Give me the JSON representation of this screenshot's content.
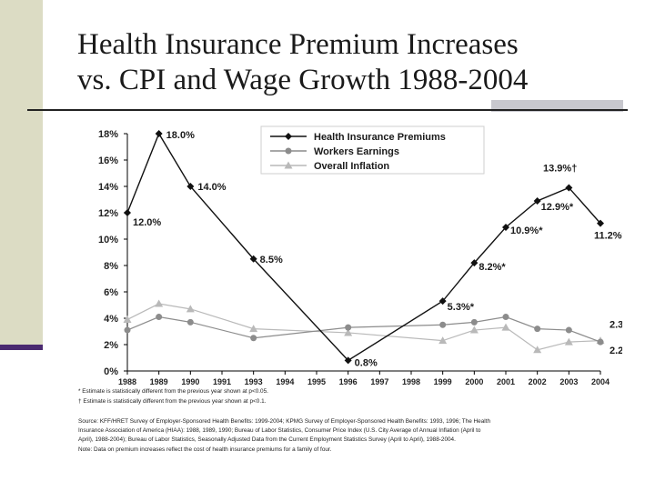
{
  "slide": {
    "title_line1": "Health Insurance Premium Increases",
    "title_line2": "vs. CPI and Wage Growth 1988-2004"
  },
  "colors": {
    "premiums": "#111111",
    "earnings": "#8c8c8c",
    "inflation": "#b9b9b9",
    "left_bar": "#dcdcc4",
    "left_bar_edge": "#4a2a70"
  },
  "chart_data": {
    "type": "line",
    "x": [
      "1988",
      "1989",
      "1990",
      "1991",
      "1993",
      "1994",
      "1995",
      "1996",
      "1997",
      "1998",
      "1999",
      "2000",
      "2001",
      "2002",
      "2003",
      "2004"
    ],
    "ylim": [
      0,
      18
    ],
    "yticks": [
      "0%",
      "2%",
      "4%",
      "6%",
      "8%",
      "10%",
      "12%",
      "14%",
      "16%",
      "18%"
    ],
    "legend_position": "top-right",
    "grid": false,
    "series": [
      {
        "name": "Health Insurance Premiums",
        "marker": "diamond",
        "points": [
          {
            "x": "1988",
            "y": 12.0,
            "label": "12.0%"
          },
          {
            "x": "1989",
            "y": 18.0,
            "label": "18.0%"
          },
          {
            "x": "1990",
            "y": 14.0,
            "label": "14.0%"
          },
          {
            "x": "1993",
            "y": 8.5,
            "label": "8.5%"
          },
          {
            "x": "1996",
            "y": 0.8,
            "label": "0.8%"
          },
          {
            "x": "1999",
            "y": 5.3,
            "label": "5.3%*"
          },
          {
            "x": "2000",
            "y": 8.2,
            "label": "8.2%*"
          },
          {
            "x": "2001",
            "y": 10.9,
            "label": "10.9%*"
          },
          {
            "x": "2002",
            "y": 12.9,
            "label": "12.9%*"
          },
          {
            "x": "2003",
            "y": 13.9,
            "label": "13.9%†"
          },
          {
            "x": "2004",
            "y": 11.2,
            "label": "11.2%*"
          }
        ]
      },
      {
        "name": "Workers Earnings",
        "marker": "circle",
        "points": [
          {
            "x": "1988",
            "y": 3.1
          },
          {
            "x": "1989",
            "y": 4.1
          },
          {
            "x": "1990",
            "y": 3.7
          },
          {
            "x": "1993",
            "y": 2.5
          },
          {
            "x": "1996",
            "y": 3.3
          },
          {
            "x": "1999",
            "y": 3.5
          },
          {
            "x": "2000",
            "y": 3.7
          },
          {
            "x": "2001",
            "y": 4.1
          },
          {
            "x": "2002",
            "y": 3.2
          },
          {
            "x": "2003",
            "y": 3.1
          },
          {
            "x": "2004",
            "y": 2.2,
            "label": "2.2%"
          }
        ]
      },
      {
        "name": "Overall Inflation",
        "marker": "triangle",
        "points": [
          {
            "x": "1988",
            "y": 3.9
          },
          {
            "x": "1989",
            "y": 5.1
          },
          {
            "x": "1990",
            "y": 4.7
          },
          {
            "x": "1993",
            "y": 3.2
          },
          {
            "x": "1996",
            "y": 2.9
          },
          {
            "x": "1999",
            "y": 2.3
          },
          {
            "x": "2000",
            "y": 3.1
          },
          {
            "x": "2001",
            "y": 3.3
          },
          {
            "x": "2002",
            "y": 1.6
          },
          {
            "x": "2003",
            "y": 2.2
          },
          {
            "x": "2004",
            "y": 2.3,
            "label": "2.3%"
          }
        ]
      }
    ],
    "footnotes": [
      "* Estimate is statistically different from the previous year shown at p<0.05.",
      "† Estimate is statistically different from the previous year shown at p<0.1.",
      "Source:   KFF/HRET Survey of Employer-Sponsored Health Benefits: 1999-2004; KPMG Survey of Employer-Sponsored Health Benefits: 1993, 1996; The Health",
      "Insurance Association of America (HIAA): 1988, 1989, 1990; Bureau of Labor Statistics, Consumer Price Index (U.S. City Average of Annual Inflation (April to",
      "April), 1988-2004); Bureau of Labor Statistics, Seasonally Adjusted Data from the Current Employment Statistics Survey (April to April), 1988-2004.",
      "Note:   Data on premium increases reflect the cost of health insurance premiums for a family of four."
    ]
  }
}
